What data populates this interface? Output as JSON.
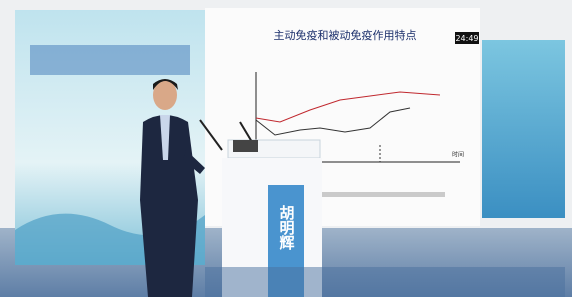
{
  "slide": {
    "title": "主动免疫和被动免疫作用特点",
    "timer": "24:49",
    "x_axis_label": "时间"
  },
  "podium": {
    "name": "胡明辉"
  }
}
